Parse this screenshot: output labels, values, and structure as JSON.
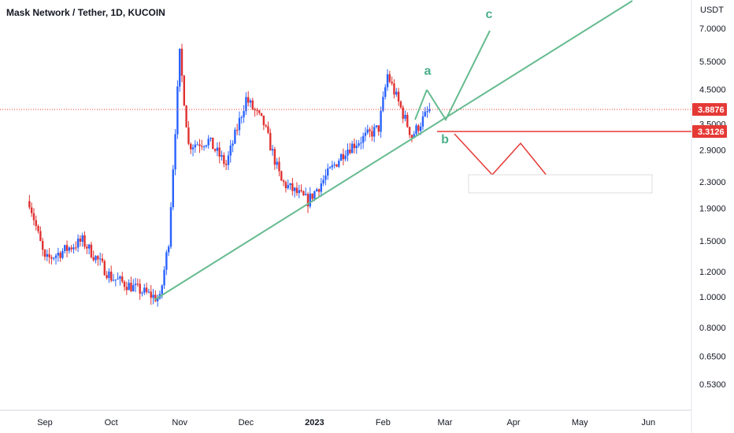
{
  "header": {
    "title": "Mask Network / Tether, 1D, KUCOIN",
    "currency": "USDT"
  },
  "colors": {
    "up": "#2962ff",
    "down": "#e03131",
    "trend": "#66bb8f",
    "resistance": "#e53935",
    "price_line": "#e53935",
    "label_green": "#4caf8a"
  },
  "chart_data": {
    "type": "candlestick",
    "y_scale": "log",
    "ylim": [
      0.47,
      8.6
    ],
    "y_ticks": [
      "7.0000",
      "5.5000",
      "4.5000",
      "3.5000",
      "2.9000",
      "2.3000",
      "1.9000",
      "1.5000",
      "1.2000",
      "1.0000",
      "0.8000",
      "0.6500",
      "0.5300"
    ],
    "x_ticks": [
      "Sep",
      "Oct",
      "Nov",
      "Dec",
      "2023",
      "Feb",
      "Mar",
      "Apr",
      "May",
      "Jun"
    ],
    "current_price": "3.8876",
    "resistance_price": "3.3126",
    "key_points": [
      {
        "date": "2022-08-25",
        "close": 2.0
      },
      {
        "date": "2022-09-01",
        "close": 1.3
      },
      {
        "date": "2022-09-18",
        "close": 1.5
      },
      {
        "date": "2022-10-01",
        "close": 1.15
      },
      {
        "date": "2022-10-23",
        "close": 0.98
      },
      {
        "date": "2022-10-27",
        "close": 1.5
      },
      {
        "date": "2022-11-01",
        "close": 5.8
      },
      {
        "date": "2022-11-05",
        "close": 3.0
      },
      {
        "date": "2022-11-14",
        "close": 3.1
      },
      {
        "date": "2022-11-22",
        "close": 2.6
      },
      {
        "date": "2022-12-01",
        "close": 4.2
      },
      {
        "date": "2022-12-09",
        "close": 3.5
      },
      {
        "date": "2022-12-17",
        "close": 2.3
      },
      {
        "date": "2022-12-29",
        "close": 2.0
      },
      {
        "date": "2023-01-15",
        "close": 2.9
      },
      {
        "date": "2023-01-30",
        "close": 3.4
      },
      {
        "date": "2023-02-03",
        "close": 5.0
      },
      {
        "date": "2023-02-14",
        "close": 3.2
      },
      {
        "date": "2023-02-22",
        "close": 3.89
      }
    ],
    "annotations": {
      "wave_labels": [
        "a",
        "b",
        "c"
      ]
    }
  }
}
